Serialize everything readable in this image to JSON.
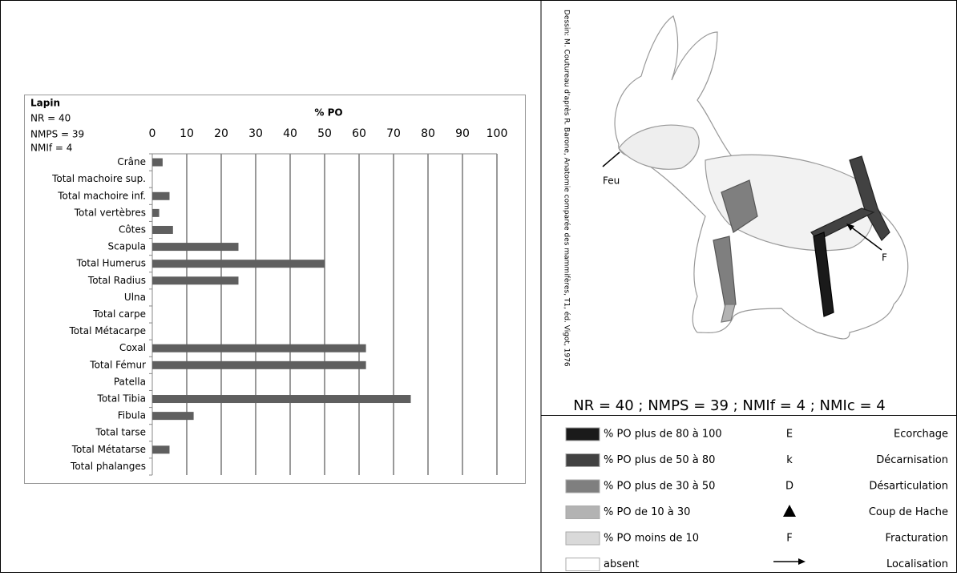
{
  "chart_data": {
    "type": "bar",
    "orientation": "horizontal",
    "title": "% PO",
    "annotations": [
      "Lapin",
      "NR = 40",
      "NMPS = 39",
      "NMIf = 4"
    ],
    "categories": [
      "Crâne",
      "Total machoire sup.",
      "Total machoire inf.",
      "Total vertèbres",
      "Côtes",
      "Scapula",
      "Total Humerus",
      "Total Radius",
      "Ulna",
      "Total carpe",
      "Total Métacarpe",
      "Coxal",
      "Total Fémur",
      "Patella",
      "Total Tibia",
      "Fibula",
      "Total tarse",
      "Total Métatarse",
      "Total phalanges"
    ],
    "values": [
      3,
      0,
      5,
      2,
      6,
      25,
      50,
      25,
      0,
      0,
      0,
      62,
      62,
      0,
      75,
      12,
      0,
      5,
      0
    ],
    "color": "#5f5f5f",
    "xlim": [
      0,
      100
    ],
    "xticks": [
      0,
      10,
      20,
      30,
      40,
      50,
      60,
      70,
      80,
      90,
      100
    ],
    "grid": true
  },
  "figure": {
    "credit": "Dessin: M. Coutureau d'après R. Barone, Anatomie comparée des mammifères, T1, éd. Vigot, 1976",
    "labels": [
      "Feu",
      "F"
    ],
    "summary": "NR = 40 ; NMPS = 39 ; NMIf = 4 ; NMIc = 4"
  },
  "legend": {
    "shading": [
      {
        "color": "#1a1a1a",
        "label": "% PO plus de 80 à 100"
      },
      {
        "color": "#424242",
        "label": "% PO  plus de 50 à 80"
      },
      {
        "color": "#7f7f7f",
        "label": "% PO plus de 30 à 50"
      },
      {
        "color": "#b3b3b3",
        "label": "% PO de 10 à 30"
      },
      {
        "color": "#d9d9d9",
        "label": "% PO moins de 10"
      },
      {
        "color": "#ffffff",
        "label": "absent"
      }
    ],
    "actions": [
      {
        "symbol": "E",
        "label": "Ecorchage"
      },
      {
        "symbol": "k",
        "label": "Décarnisation"
      },
      {
        "symbol": "D",
        "label": "Désarticulation"
      },
      {
        "label": "Coup de Hache"
      },
      {
        "symbol": "F",
        "label": "Fracturation"
      },
      {
        "label": "Localisation"
      }
    ]
  }
}
